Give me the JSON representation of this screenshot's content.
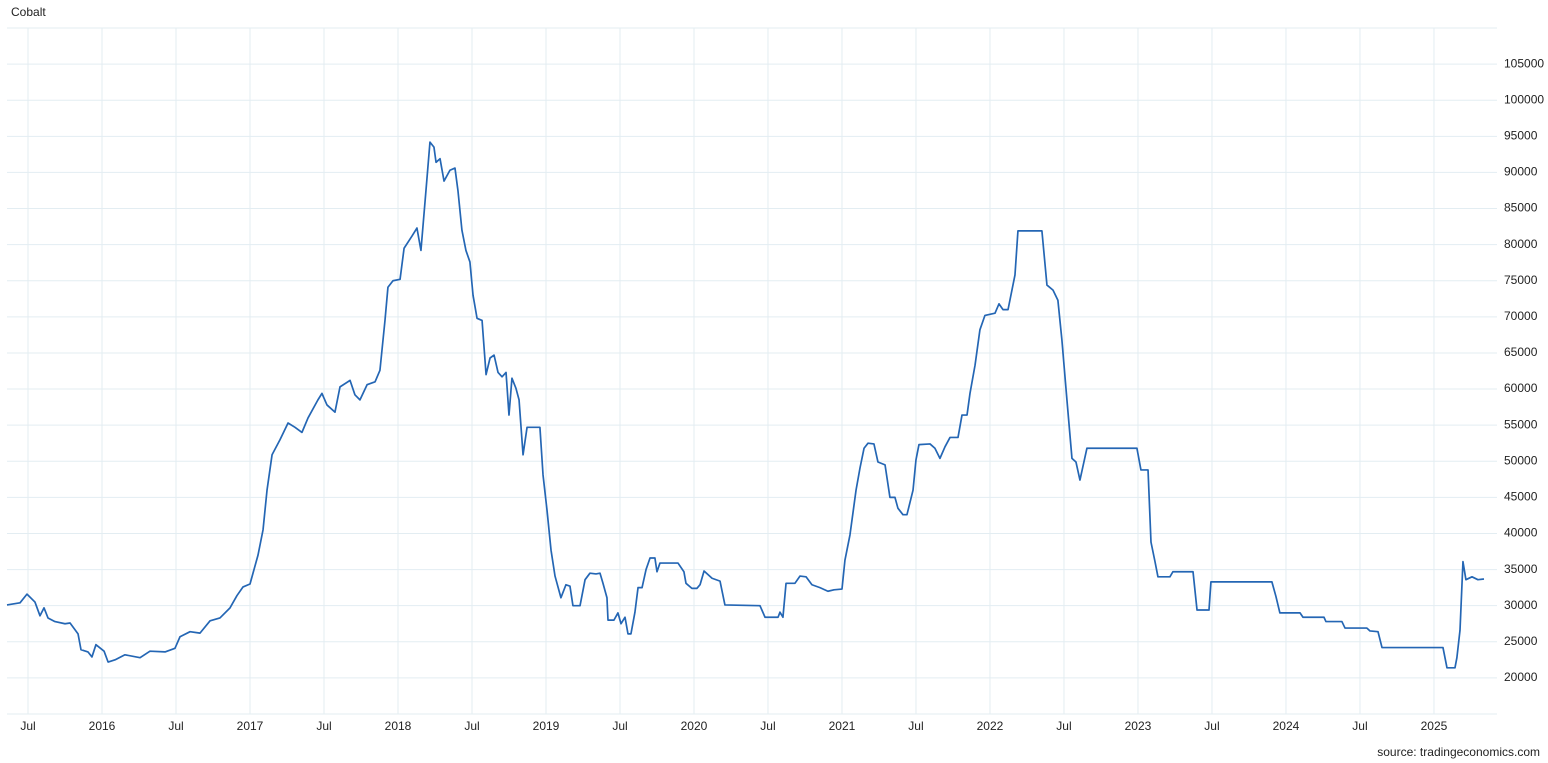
{
  "chart_data": {
    "type": "line",
    "title": "Cobalt",
    "source": "source: tradingeconomics.com",
    "color": "#2466b4",
    "grid": true,
    "xlim": [
      2015.358,
      2025.426
    ],
    "ylim": [
      15000,
      110000
    ],
    "xticks": [
      {
        "value": 2015.5,
        "label": "Jul"
      },
      2016,
      {
        "value": 2016.5,
        "label": "Jul"
      },
      2017,
      {
        "value": 2017.5,
        "label": "Jul"
      },
      2018,
      {
        "value": 2018.5,
        "label": "Jul"
      },
      2019,
      {
        "value": 2019.5,
        "label": "Jul"
      },
      2020,
      {
        "value": 2020.5,
        "label": "Jul"
      },
      2021,
      {
        "value": 2021.5,
        "label": "Jul"
      },
      2022,
      {
        "value": 2022.5,
        "label": "Jul"
      },
      2023,
      {
        "value": 2023.5,
        "label": "Jul"
      },
      2024,
      {
        "value": 2024.5,
        "label": "Jul"
      },
      2025
    ],
    "yticks": [
      20000,
      25000,
      30000,
      35000,
      40000,
      45000,
      50000,
      55000,
      60000,
      65000,
      70000,
      75000,
      80000,
      85000,
      90000,
      95000,
      100000,
      105000
    ],
    "x": [
      2015.358,
      2015.446,
      2015.493,
      2015.547,
      2015.581,
      2015.608,
      2015.635,
      2015.682,
      2015.75,
      2015.784,
      2015.838,
      2015.858,
      2015.905,
      2015.932,
      2015.959,
      2016.014,
      2016.041,
      2016.088,
      2016.155,
      2016.257,
      2016.324,
      2016.426,
      2016.493,
      2016.527,
      2016.595,
      2016.662,
      2016.73,
      2016.797,
      2016.865,
      2016.912,
      2016.953,
      2017.0,
      2017.054,
      2017.088,
      2017.115,
      2017.149,
      2017.203,
      2017.257,
      2017.304,
      2017.351,
      2017.392,
      2017.459,
      2017.486,
      2017.52,
      2017.574,
      2017.608,
      2017.676,
      2017.709,
      2017.743,
      2017.791,
      2017.845,
      2017.878,
      2017.912,
      2017.932,
      2017.966,
      2018.014,
      2018.041,
      2018.095,
      2018.128,
      2018.155,
      2018.189,
      2018.216,
      2018.243,
      2018.257,
      2018.284,
      2018.311,
      2018.351,
      2018.385,
      2018.405,
      2018.432,
      2018.459,
      2018.486,
      2018.507,
      2018.534,
      2018.568,
      2018.595,
      2018.622,
      2018.649,
      2018.676,
      2018.703,
      2018.73,
      2018.75,
      2018.77,
      2018.797,
      2018.818,
      2018.845,
      2018.872,
      2018.959,
      2018.98,
      2019.007,
      2019.034,
      2019.061,
      2019.101,
      2019.135,
      2019.162,
      2019.182,
      2019.23,
      2019.264,
      2019.297,
      2019.338,
      2019.365,
      2019.385,
      2019.412,
      2019.419,
      2019.459,
      2019.486,
      2019.507,
      2019.534,
      2019.554,
      2019.574,
      2019.601,
      2019.622,
      2019.649,
      2019.676,
      2019.703,
      2019.736,
      2019.75,
      2019.77,
      2019.892,
      2019.932,
      2019.946,
      2019.986,
      2020.02,
      2020.041,
      2020.068,
      2020.122,
      2020.176,
      2020.209,
      2020.446,
      2020.48,
      2020.568,
      2020.581,
      2020.601,
      2020.622,
      2020.682,
      2020.716,
      2020.757,
      2020.797,
      2020.851,
      2020.905,
      2020.946,
      2021.0,
      2021.02,
      2021.054,
      2021.095,
      2021.122,
      2021.149,
      2021.176,
      2021.216,
      2021.243,
      2021.291,
      2021.324,
      2021.358,
      2021.378,
      2021.412,
      2021.439,
      2021.48,
      2021.5,
      2021.52,
      2021.595,
      2021.628,
      2021.662,
      2021.696,
      2021.73,
      2021.784,
      2021.811,
      2021.845,
      2021.865,
      2021.899,
      2021.932,
      2021.966,
      2022.034,
      2022.061,
      2022.088,
      2022.122,
      2022.169,
      2022.189,
      2022.351,
      2022.385,
      2022.426,
      2022.459,
      2022.486,
      2022.52,
      2022.554,
      2022.581,
      2022.608,
      2022.655,
      2022.993,
      2023.02,
      2023.068,
      2023.088,
      2023.115,
      2023.135,
      2023.216,
      2023.236,
      2023.372,
      2023.399,
      2023.48,
      2023.493,
      2023.905,
      2023.932,
      2023.959,
      2024.095,
      2024.115,
      2024.257,
      2024.27,
      2024.378,
      2024.399,
      2024.547,
      2024.568,
      2024.622,
      2024.649,
      2025.061,
      2025.088,
      2025.142,
      2025.155,
      2025.176,
      2025.196,
      2025.216,
      2025.257,
      2025.297,
      2025.338
    ],
    "values": [
      30100,
      30400,
      31600,
      30500,
      28600,
      29700,
      28300,
      27800,
      27500,
      27600,
      26100,
      23900,
      23600,
      22900,
      24600,
      23700,
      22200,
      22500,
      23200,
      22800,
      23700,
      23600,
      24100,
      25700,
      26400,
      26200,
      27900,
      28300,
      29700,
      31400,
      32600,
      33000,
      37000,
      40500,
      46000,
      50900,
      53000,
      55300,
      54700,
      54000,
      56000,
      58500,
      59400,
      57800,
      56800,
      60300,
      61200,
      59200,
      58500,
      60600,
      61000,
      62600,
      69500,
      74100,
      75000,
      75200,
      79500,
      81200,
      82300,
      79200,
      87500,
      94200,
      93500,
      91400,
      91900,
      88800,
      90300,
      90600,
      87500,
      82000,
      79200,
      77600,
      73000,
      69800,
      69500,
      62000,
      64300,
      64700,
      62300,
      61700,
      62300,
      56400,
      61500,
      60100,
      58500,
      50900,
      54700,
      54700,
      48100,
      43200,
      37700,
      34100,
      31100,
      32900,
      32700,
      30000,
      30000,
      33600,
      34500,
      34400,
      34500,
      33100,
      31100,
      28000,
      28000,
      29000,
      27500,
      28400,
      26100,
      26100,
      29100,
      32500,
      32500,
      35000,
      36600,
      36600,
      34700,
      35900,
      35900,
      34700,
      33100,
      32400,
      32400,
      32900,
      34800,
      33800,
      33400,
      30100,
      30000,
      28400,
      28400,
      29100,
      28400,
      33100,
      33100,
      34100,
      34000,
      32900,
      32500,
      32000,
      32200,
      32300,
      36300,
      39800,
      46000,
      49100,
      51800,
      52500,
      52400,
      49900,
      49500,
      45000,
      45000,
      43500,
      42600,
      42600,
      46000,
      50200,
      52300,
      52400,
      51800,
      50400,
      52000,
      53300,
      53300,
      56400,
      56400,
      59400,
      63300,
      68200,
      70200,
      70500,
      71800,
      71000,
      71000,
      75800,
      81900,
      81900,
      74400,
      73700,
      72300,
      66800,
      58500,
      50400,
      49900,
      47400,
      51800,
      51800,
      48800,
      48800,
      38800,
      36100,
      34000,
      34000,
      34700,
      34700,
      29400,
      29400,
      33300,
      33300,
      31300,
      29000,
      29000,
      28400,
      28400,
      27800,
      27800,
      26900,
      26900,
      26500,
      26400,
      24200,
      24200,
      21400,
      21400,
      22800,
      26600,
      36100,
      33600,
      34000,
      33600,
      33700
    ]
  }
}
